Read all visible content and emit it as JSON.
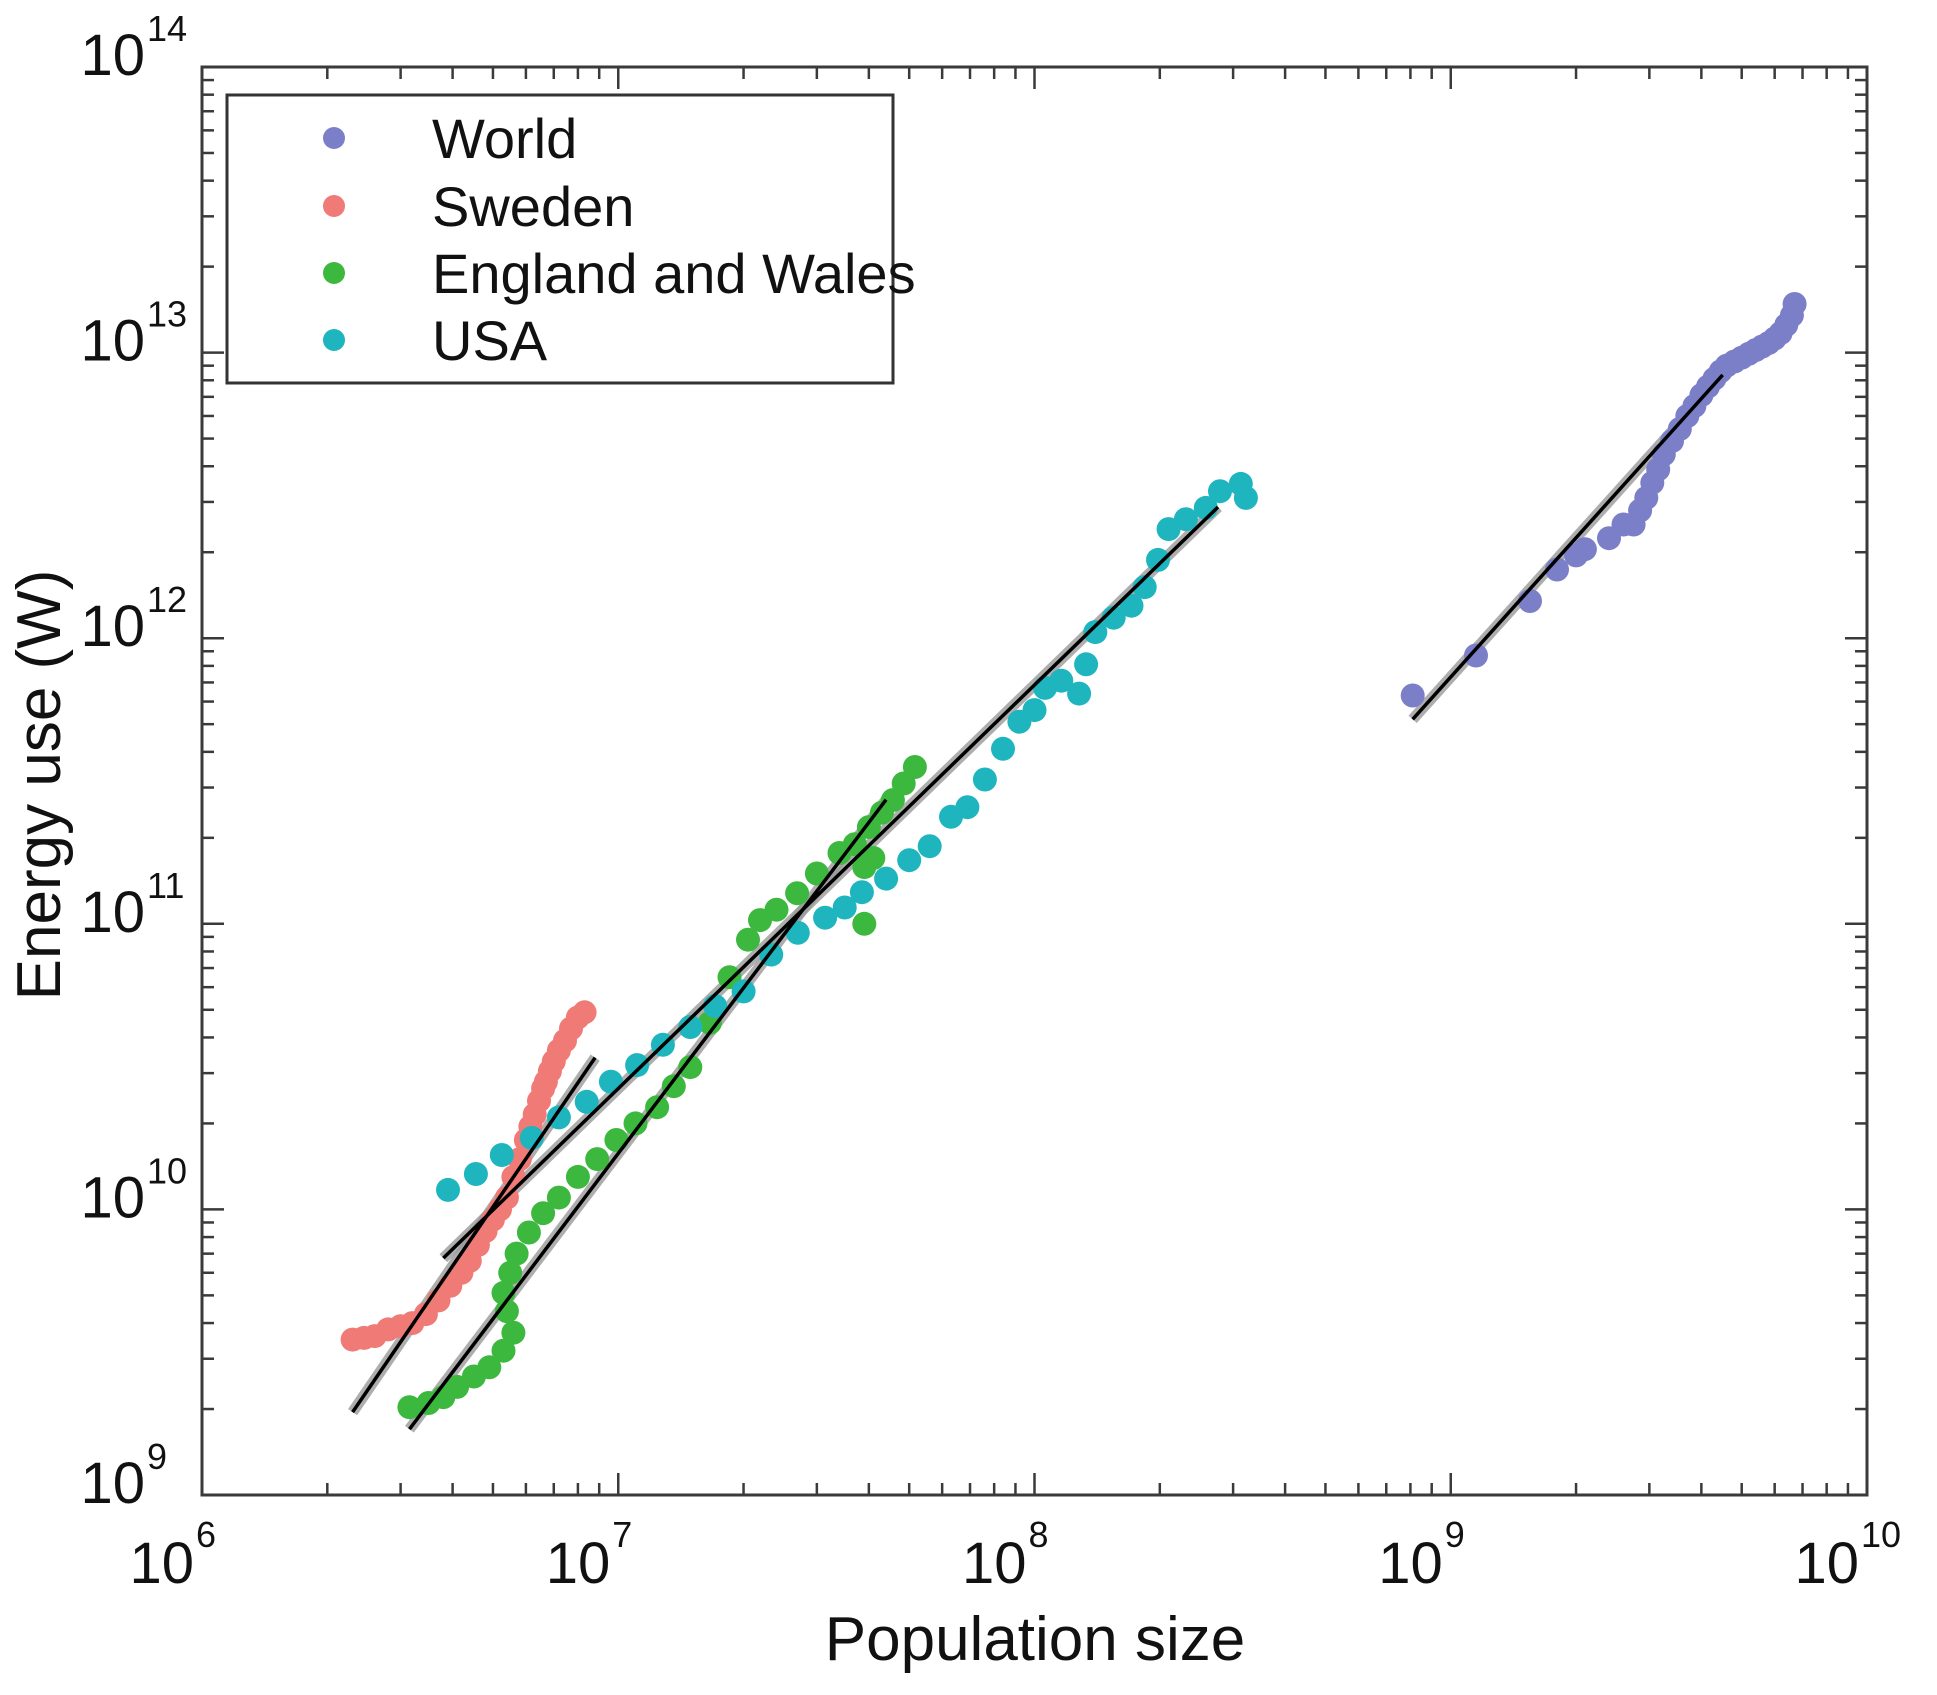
{
  "chart_data": {
    "type": "scatter",
    "title": "",
    "xlabel": "Population size",
    "ylabel": "Energy use (W)",
    "xscale": "log",
    "yscale": "log",
    "xlim": [
      1000000.0,
      10000000000.0
    ],
    "ylim": [
      1000000000.0,
      100000000000000.0
    ],
    "grid": false,
    "legend_position": "top-left",
    "x_ticks": [
      {
        "value": 1000000.0,
        "base": "10",
        "exp": "6"
      },
      {
        "value": 10000000.0,
        "base": "10",
        "exp": "7"
      },
      {
        "value": 100000000.0,
        "base": "10",
        "exp": "8"
      },
      {
        "value": 1000000000.0,
        "base": "10",
        "exp": "9"
      },
      {
        "value": 10000000000.0,
        "base": "10",
        "exp": "10"
      }
    ],
    "y_ticks": [
      {
        "value": 1000000000.0,
        "base": "10",
        "exp": "9"
      },
      {
        "value": 10000000000.0,
        "base": "10",
        "exp": "10"
      },
      {
        "value": 100000000000.0,
        "base": "10",
        "exp": "11"
      },
      {
        "value": 1000000000000.0,
        "base": "10",
        "exp": "12"
      },
      {
        "value": 10000000000000.0,
        "base": "10",
        "exp": "13"
      },
      {
        "value": 100000000000000.0,
        "base": "10",
        "exp": "14"
      }
    ],
    "series": [
      {
        "name": "World",
        "color": "#7b7fc8",
        "x": [
          810000000.0,
          1150000000.0,
          1550000000.0,
          1800000000.0,
          2000000000.0,
          2100000000.0,
          2400000000.0,
          2600000000.0,
          2750000000.0,
          2850000000.0,
          2950000000.0,
          3050000000.0,
          3150000000.0,
          3250000000.0,
          3400000000.0,
          3550000000.0,
          3700000000.0,
          3850000000.0,
          4000000000.0,
          4150000000.0,
          4300000000.0,
          4450000000.0,
          4600000000.0,
          4800000000.0,
          5000000000.0,
          5200000000.0,
          5400000000.0,
          5600000000.0,
          5800000000.0,
          6000000000.0,
          6200000000.0,
          6400000000.0,
          6600000000.0,
          6700000000.0
        ],
        "y": [
          630000000000.0,
          870000000000.0,
          1350000000000.0,
          1740000000000.0,
          1950000000000.0,
          2050000000000.0,
          2240000000000.0,
          2500000000000.0,
          2500000000000.0,
          2800000000000.0,
          3100000000000.0,
          3500000000000.0,
          3900000000000.0,
          4400000000000.0,
          4900000000000.0,
          5400000000000.0,
          6000000000000.0,
          6500000000000.0,
          7100000000000.0,
          7600000000000.0,
          8100000000000.0,
          8600000000000.0,
          9000000000000.0,
          9300000000000.0,
          9600000000000.0,
          9900000000000.0,
          10200000000000.0,
          10500000000000.0,
          10800000000000.0,
          11200000000000.0,
          11700000000000.0,
          12500000000000.0,
          13500000000000.0,
          14800000000000.0
        ]
      },
      {
        "name": "Sweden",
        "color": "#f07a76",
        "x": [
          2300000.0,
          2450000.0,
          2600000.0,
          2800000.0,
          3000000.0,
          3200000.0,
          3450000.0,
          3700000.0,
          3950000.0,
          4200000.0,
          4400000.0,
          4600000.0,
          4800000.0,
          5000000.0,
          5200000.0,
          5400000.0,
          5600000.0,
          5800000.0,
          6000000.0,
          6150000.0,
          6300000.0,
          6450000.0,
          6600000.0,
          6700000.0,
          6850000.0,
          7000000.0,
          7200000.0,
          7450000.0,
          7700000.0,
          8000000.0,
          8300000.0
        ],
        "y": [
          3500000000.0,
          3550000000.0,
          3600000000.0,
          3800000000.0,
          3900000000.0,
          4000000000.0,
          4300000000.0,
          4800000000.0,
          5400000000.0,
          6000000000.0,
          6600000000.0,
          7500000000.0,
          8400000000.0,
          9200000000.0,
          10000000000.0,
          11000000000.0,
          13000000000.0,
          15000000000.0,
          17500000000.0,
          19500000000.0,
          21500000000.0,
          24000000000.0,
          26500000000.0,
          28000000000.0,
          30500000000.0,
          33000000000.0,
          36000000000.0,
          39000000000.0,
          43000000000.0,
          47000000000.0,
          49000000000.0
        ]
      },
      {
        "name": "England and Wales",
        "color": "#3db83f",
        "x": [
          3150000.0,
          3500000.0,
          3800000.0,
          4100000.0,
          4500000.0,
          4900000.0,
          5300000.0,
          5600000.0,
          5400000.0,
          5300000.0,
          5500000.0,
          5700000.0,
          6100000.0,
          6600000.0,
          7200000.0,
          8000000.0,
          8900000.0,
          9900000.0,
          11000000.0,
          12400000.0,
          13600000.0,
          14900000.0,
          16600000.0,
          18500000.0,
          20500000.0,
          21900000.0,
          24000000.0,
          26900000.0,
          30000000.0,
          34000000.0,
          37000000.0,
          39000000.0,
          40000000.0,
          43000000.0,
          45700000.0,
          48500000.0,
          51600000.0,
          39000000.0,
          41000000.0
        ],
        "y": [
          2030000000.0,
          2100000000.0,
          2200000000.0,
          2390000000.0,
          2600000000.0,
          2800000000.0,
          3200000000.0,
          3700000000.0,
          4400000000.0,
          5100000000.0,
          6000000000.0,
          7000000000.0,
          8300000000.0,
          9700000000.0,
          11000000000.0,
          13000000000.0,
          15000000000.0,
          17500000000.0,
          20000000000.0,
          22800000000.0,
          27000000000.0,
          31500000000.0,
          45000000000.0,
          65000000000.0,
          88000000000.0,
          103000000000.0,
          112000000000.0,
          128000000000.0,
          150000000000.0,
          177000000000.0,
          190000000000.0,
          158000000000.0,
          218000000000.0,
          245000000000.0,
          271000000000.0,
          310000000000.0,
          354000000000.0,
          100000000000.0,
          170000000000.0
        ]
      },
      {
        "name": "USA",
        "color": "#1fb5be",
        "x": [
          3900000.0,
          4550000.0,
          5250000.0,
          6200000.0,
          7200000.0,
          8400000.0,
          9600000.0,
          11100000.0,
          12800000.0,
          14900000.0,
          17100000.0,
          20000000.0,
          23300000.0,
          27000000.0,
          31400000.0,
          35000000.0,
          38500000.0,
          44000000.0,
          50000000.0,
          56000000.0,
          63000000.0,
          69000000.0,
          76000000.0,
          84000000.0,
          92000000.0,
          100000000.0,
          106000000.0,
          116000000.0,
          128000000.0,
          133000000.0,
          140000000.0,
          155000000.0,
          171000000.0,
          184000000.0,
          198000000.0,
          210000000.0,
          231000000.0,
          258000000.0,
          279000000.0,
          313000000.0,
          322000000.0
        ],
        "y": [
          11700000000.0,
          13300000000.0,
          15500000000.0,
          17800000000.0,
          21000000000.0,
          23800000000.0,
          28000000000.0,
          32000000000.0,
          37700000000.0,
          43500000000.0,
          51500000000.0,
          58000000000.0,
          78000000000.0,
          93000000000.0,
          105000000000.0,
          114000000000.0,
          129000000000.0,
          144000000000.0,
          167000000000.0,
          187000000000.0,
          237000000000.0,
          256000000000.0,
          320000000000.0,
          410000000000.0,
          510000000000.0,
          560000000000.0,
          670000000000.0,
          710000000000.0,
          640000000000.0,
          810000000000.0,
          1050000000000.0,
          1180000000000.0,
          1300000000000.0,
          1510000000000.0,
          1880000000000.0,
          2410000000000.0,
          2610000000000.0,
          2860000000000.0,
          3270000000000.0,
          3470000000000.0,
          3100000000000.0
        ]
      }
    ],
    "fit_lines": [
      {
        "name": "World fit",
        "x": [
          810000000.0,
          4500000000.0
        ],
        "y": [
          520000000000.0,
          8350000000000.0
        ]
      },
      {
        "name": "Sweden fit",
        "x": [
          2300000.0,
          8800000.0
        ],
        "y": [
          1950000000.0,
          34000000000.0
        ]
      },
      {
        "name": "England and Wales fit",
        "x": [
          3150000.0,
          44000000.0
        ],
        "y": [
          1700000000.0,
          272000000000.0
        ]
      },
      {
        "name": "USA fit",
        "x": [
          3800000.0,
          276000000.0
        ],
        "y": [
          6750000000.0,
          2880000000000.0
        ]
      }
    ]
  }
}
